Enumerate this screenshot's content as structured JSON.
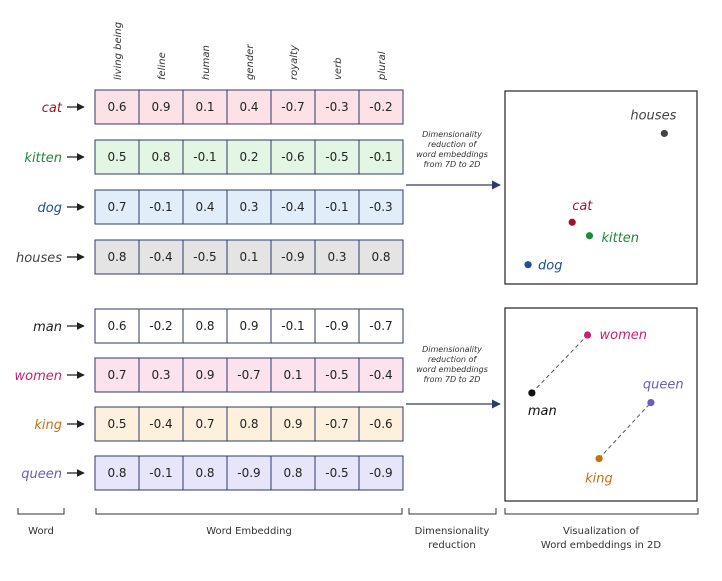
{
  "dimensions": [
    "living being",
    "feline",
    "human",
    "gender",
    "royalty",
    "verb",
    "plural"
  ],
  "groups": [
    {
      "words": [
        {
          "word": "cat",
          "color": "#a0142a",
          "fill": "#fce2e6",
          "values": [
            "0.6",
            "0.9",
            "0.1",
            "0.4",
            "-0.7",
            "-0.3",
            "-0.2"
          ]
        },
        {
          "word": "kitten",
          "color": "#1d8a36",
          "fill": "#e3f6e3",
          "values": [
            "0.5",
            "0.8",
            "-0.1",
            "0.2",
            "-0.6",
            "-0.5",
            "-0.1"
          ]
        },
        {
          "word": "dog",
          "color": "#1f4f8f",
          "fill": "#e1eefa",
          "values": [
            "0.7",
            "-0.1",
            "0.4",
            "0.3",
            "-0.4",
            "-0.1",
            "-0.3"
          ]
        },
        {
          "word": "houses",
          "color": "#444444",
          "fill": "#e4e4e4",
          "values": [
            "0.8",
            "-0.4",
            "-0.5",
            "0.1",
            "-0.9",
            "0.3",
            "0.8"
          ]
        }
      ],
      "note": [
        "Dimensionality",
        "reduction of",
        "word embeddings",
        "from 7D to 2D"
      ],
      "points": [
        {
          "label": "houses",
          "color": "#444444",
          "x": 0.83,
          "y": 0.78
        },
        {
          "label": "cat",
          "color": "#a0142a",
          "x": 0.35,
          "y": 0.32
        },
        {
          "label": "kitten",
          "color": "#1d8a36",
          "x": 0.44,
          "y": 0.25
        },
        {
          "label": "dog",
          "color": "#1f4f8f",
          "x": 0.12,
          "y": 0.1
        }
      ]
    },
    {
      "words": [
        {
          "word": "man",
          "color": "#222222",
          "fill": "#ffffff",
          "values": [
            "0.6",
            "-0.2",
            "0.8",
            "0.9",
            "-0.1",
            "-0.9",
            "-0.7"
          ]
        },
        {
          "word": "women",
          "color": "#cc1f6f",
          "fill": "#fce2ec",
          "values": [
            "0.7",
            "0.3",
            "0.9",
            "-0.7",
            "0.1",
            "-0.5",
            "-0.4"
          ]
        },
        {
          "word": "king",
          "color": "#c7700f",
          "fill": "#fdf0dc",
          "values": [
            "0.5",
            "-0.4",
            "0.7",
            "0.8",
            "0.9",
            "-0.7",
            "-0.6"
          ]
        },
        {
          "word": "queen",
          "color": "#6a5cc0",
          "fill": "#e7e5fa",
          "values": [
            "0.8",
            "-0.1",
            "0.8",
            "-0.9",
            "0.8",
            "-0.5",
            "-0.9"
          ]
        }
      ],
      "note": [
        "Dimensionality",
        "reduction of",
        "word embeddings",
        "from 7D to 2D"
      ],
      "points": [
        {
          "label": "women",
          "color": "#cc1f6f",
          "x": 0.43,
          "y": 0.86
        },
        {
          "label": "man",
          "color": "#111111",
          "x": 0.14,
          "y": 0.56
        },
        {
          "label": "queen",
          "color": "#6a5cc0",
          "x": 0.76,
          "y": 0.51
        },
        {
          "label": "king",
          "color": "#c7700f",
          "x": 0.49,
          "y": 0.22
        }
      ],
      "links": [
        [
          "man",
          "women"
        ],
        [
          "king",
          "queen"
        ]
      ]
    }
  ],
  "footer": {
    "word": "Word",
    "embedding": "Word Embedding",
    "reduction": [
      "Dimensionality",
      "reduction"
    ],
    "visualization": [
      "Visualization of",
      "Word embeddings in 2D"
    ]
  }
}
